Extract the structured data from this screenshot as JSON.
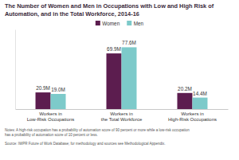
{
  "chart_data": {
    "type": "bar",
    "title": "The Number of Women and Men in Occupations with Low and High Risk of Automation, and in the Total Workforce, 2014-16",
    "categories": [
      "Workers in Low-Risk Occupations",
      "Workers in the Total Workforce",
      "Workers in High-Risk Occupations"
    ],
    "series": [
      {
        "name": "Women",
        "color": "#5c1d4f",
        "values": [
          20.9,
          69.9,
          20.2
        ],
        "value_labels": [
          "20.9M",
          "69.9M",
          "20.2M"
        ]
      },
      {
        "name": "Men",
        "color": "#7dcaca",
        "values": [
          19.0,
          77.6,
          14.4
        ],
        "value_labels": [
          "19.0M",
          "77.6M",
          "14.4M"
        ]
      }
    ],
    "ylim": [
      0,
      100
    ],
    "tick_labels": false,
    "data_labels": true,
    "legend": "top",
    "annotations": [
      "Notes: A high-risk occupation has a probability of automation score of 90 percent or more while a low-risk occupation",
      "has a probability of automation score of 10 percent or less.",
      "Source: IWPR Future of Work Database; for methodology and sources see Methodological Appendix."
    ]
  }
}
